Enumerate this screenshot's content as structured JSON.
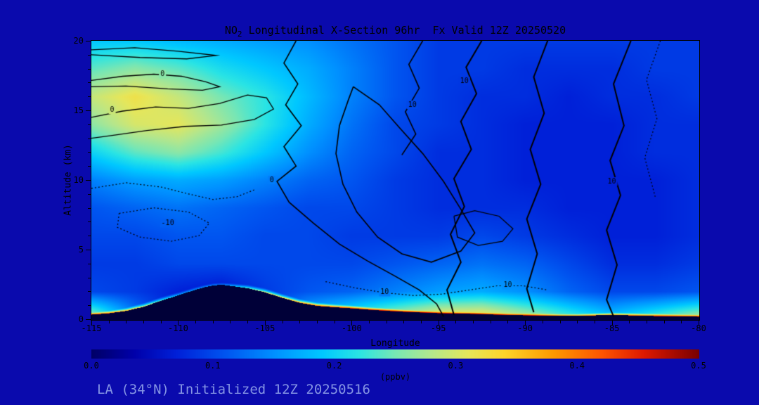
{
  "title": {
    "prefix": "NO",
    "sub": "2",
    "rest": " Longitudinal X-Section 96hr  Fx Valid 12Z 20250520"
  },
  "footer": "LA (34°N) Initialized 12Z 20250516",
  "axes": {
    "y_label": "Altitude (km)",
    "x_label": "Longitude",
    "y_ticks": [
      0,
      5,
      10,
      15,
      20
    ],
    "x_ticks": [
      -115,
      -110,
      -105,
      -100,
      -95,
      -90,
      -85,
      -80
    ]
  },
  "colorbar": {
    "ticks": [
      "0.0",
      "0.1",
      "0.2",
      "0.3",
      "0.4",
      "0.5"
    ],
    "label": "(ppbv)",
    "min": 0.0,
    "max": 0.5
  },
  "chart_data": {
    "type": "heatmap",
    "title": "NO2 Longitudinal X-Section 96hr Fx Valid 12Z 20250520",
    "xlabel": "Longitude",
    "ylabel": "Altitude (km)",
    "units": "ppbv",
    "xlim": [
      -115,
      -80
    ],
    "ylim": [
      0,
      20
    ],
    "value_range": [
      0,
      0.5
    ],
    "lon": [
      -115,
      -112.5,
      -110,
      -107.5,
      -105,
      -102.5,
      -100,
      -97.5,
      -95,
      -92.5,
      -90,
      -87.5,
      -85,
      -82.5,
      -80
    ],
    "alt": [
      0,
      2,
      4,
      6,
      8,
      10,
      12,
      14,
      16,
      18,
      20
    ],
    "values": [
      [
        0.3,
        0.15,
        0.05,
        0.04,
        0.1,
        0.2,
        0.25,
        0.3,
        0.35,
        0.35,
        0.3,
        0.25,
        0.2,
        0.25,
        0.3
      ],
      [
        0.1,
        0.09,
        0.07,
        0.06,
        0.09,
        0.11,
        0.12,
        0.14,
        0.16,
        0.17,
        0.15,
        0.12,
        0.1,
        0.1,
        0.11
      ],
      [
        0.09,
        0.09,
        0.1,
        0.1,
        0.1,
        0.1,
        0.1,
        0.11,
        0.12,
        0.13,
        0.12,
        0.1,
        0.08,
        0.08,
        0.09
      ],
      [
        0.1,
        0.1,
        0.11,
        0.11,
        0.1,
        0.1,
        0.09,
        0.09,
        0.09,
        0.1,
        0.09,
        0.08,
        0.07,
        0.07,
        0.08
      ],
      [
        0.11,
        0.12,
        0.13,
        0.12,
        0.11,
        0.1,
        0.1,
        0.09,
        0.08,
        0.08,
        0.08,
        0.07,
        0.07,
        0.07,
        0.08
      ],
      [
        0.14,
        0.16,
        0.17,
        0.16,
        0.14,
        0.12,
        0.11,
        0.09,
        0.08,
        0.08,
        0.07,
        0.07,
        0.07,
        0.07,
        0.08
      ],
      [
        0.2,
        0.24,
        0.26,
        0.23,
        0.19,
        0.15,
        0.12,
        0.1,
        0.08,
        0.08,
        0.07,
        0.07,
        0.07,
        0.08,
        0.08
      ],
      [
        0.26,
        0.3,
        0.31,
        0.27,
        0.22,
        0.17,
        0.13,
        0.1,
        0.09,
        0.08,
        0.07,
        0.07,
        0.07,
        0.08,
        0.08
      ],
      [
        0.29,
        0.32,
        0.29,
        0.25,
        0.22,
        0.18,
        0.14,
        0.11,
        0.09,
        0.08,
        0.08,
        0.07,
        0.08,
        0.08,
        0.09
      ],
      [
        0.24,
        0.26,
        0.24,
        0.21,
        0.19,
        0.17,
        0.14,
        0.11,
        0.09,
        0.09,
        0.08,
        0.08,
        0.08,
        0.09,
        0.09
      ],
      [
        0.19,
        0.19,
        0.18,
        0.17,
        0.16,
        0.15,
        0.13,
        0.11,
        0.09,
        0.09,
        0.09,
        0.09,
        0.09,
        0.09,
        0.09
      ]
    ],
    "surface_values": [
      0.46,
      0.36,
      0.18,
      0.14,
      0.32,
      0.42,
      0.46,
      0.5,
      0.5,
      0.5,
      0.48,
      0.42,
      0.38,
      0.46,
      0.5
    ],
    "terrain": {
      "lon": [
        -115,
        -114,
        -113,
        -112,
        -111,
        -110,
        -109,
        -108.5,
        -108,
        -107.5,
        -107,
        -106,
        -105,
        -104,
        -103,
        -102,
        -101,
        -100,
        -99,
        -98,
        -97,
        -96,
        -95,
        -94,
        -93,
        -92,
        -91,
        -90,
        -89,
        -88,
        -87,
        -86,
        -85,
        -84,
        -83,
        -82,
        -81,
        -80
      ],
      "height_km": [
        0.35,
        0.45,
        0.62,
        0.92,
        1.35,
        1.75,
        2.15,
        2.32,
        2.45,
        2.5,
        2.42,
        2.25,
        1.95,
        1.55,
        1.2,
        0.98,
        0.88,
        0.8,
        0.7,
        0.62,
        0.55,
        0.5,
        0.45,
        0.42,
        0.4,
        0.36,
        0.32,
        0.3,
        0.28,
        0.26,
        0.26,
        0.3,
        0.34,
        0.3,
        0.26,
        0.24,
        0.22,
        0.2
      ]
    },
    "colormap": [
      [
        0.0,
        "#000066"
      ],
      [
        0.07,
        "#0000aa"
      ],
      [
        0.14,
        "#0020d8"
      ],
      [
        0.22,
        "#0055f0"
      ],
      [
        0.3,
        "#0090ff"
      ],
      [
        0.38,
        "#00c8ff"
      ],
      [
        0.44,
        "#2ae4e4"
      ],
      [
        0.5,
        "#78e6b4"
      ],
      [
        0.56,
        "#b4e68c"
      ],
      [
        0.62,
        "#e6e65a"
      ],
      [
        0.68,
        "#ffd52a"
      ],
      [
        0.76,
        "#ff9900"
      ],
      [
        0.84,
        "#ff5500"
      ],
      [
        0.91,
        "#dd1900"
      ],
      [
        1.0,
        "#7a0000"
      ]
    ],
    "terrain_color": "#000038",
    "overlay_contours": [
      {
        "style": "solid",
        "width": 1.3,
        "points": [
          [
            -115,
            17.15
          ],
          [
            -113.2,
            17.45
          ],
          [
            -111.4,
            17.6
          ],
          [
            -109.8,
            17.45
          ],
          [
            -108.4,
            17.05
          ],
          [
            -107.6,
            16.7
          ],
          [
            -108.6,
            16.45
          ],
          [
            -110.6,
            16.55
          ],
          [
            -113,
            16.75
          ],
          [
            -115,
            16.7
          ]
        ],
        "labels": [
          {
            "text": "0",
            "pos": [
              -110.9,
              17.6
            ]
          }
        ]
      },
      {
        "style": "solid",
        "width": 1.3,
        "points": [
          [
            -115,
            19.35
          ],
          [
            -112.5,
            19.5
          ],
          [
            -110,
            19.25
          ],
          [
            -107.8,
            18.95
          ],
          [
            -109.5,
            18.7
          ],
          [
            -112.2,
            18.8
          ],
          [
            -115,
            19.0
          ]
        ],
        "labels": []
      },
      {
        "style": "solid",
        "width": 1.3,
        "points": [
          [
            -115,
            14.5
          ],
          [
            -113.2,
            14.95
          ],
          [
            -111.3,
            15.25
          ],
          [
            -109.4,
            15.15
          ],
          [
            -107.6,
            15.5
          ],
          [
            -106,
            16.1
          ],
          [
            -104.9,
            15.9
          ],
          [
            -104.5,
            15.1
          ],
          [
            -105.6,
            14.35
          ],
          [
            -107.5,
            13.95
          ],
          [
            -109.6,
            13.85
          ],
          [
            -111.8,
            13.55
          ],
          [
            -113.8,
            13.2
          ],
          [
            -115,
            13.0
          ]
        ],
        "labels": [
          {
            "text": "0",
            "pos": [
              -113.8,
              15.05
            ]
          }
        ]
      },
      {
        "style": "solid",
        "width": 1.6,
        "points": [
          [
            -103.2,
            20
          ],
          [
            -103.9,
            18.4
          ],
          [
            -103.1,
            16.9
          ],
          [
            -103.8,
            15.4
          ],
          [
            -102.9,
            13.9
          ],
          [
            -103.9,
            12.4
          ],
          [
            -103.2,
            11
          ],
          [
            -104.3,
            9.9
          ],
          [
            -103.6,
            8.4
          ],
          [
            -102.2,
            6.9
          ],
          [
            -100.7,
            5.4
          ],
          [
            -99.1,
            4.2
          ],
          [
            -97.5,
            3.1
          ],
          [
            -96.1,
            2.1
          ],
          [
            -95.1,
            1.1
          ],
          [
            -94.7,
            0.2
          ]
        ],
        "labels": [
          {
            "text": "0",
            "pos": [
              -104.6,
              10.0
            ]
          }
        ]
      },
      {
        "style": "solid",
        "width": 1.6,
        "points": [
          [
            -99.9,
            16.7
          ],
          [
            -98.4,
            15.4
          ],
          [
            -97.2,
            13.7
          ],
          [
            -95.9,
            11.9
          ],
          [
            -94.7,
            9.9
          ],
          [
            -93.7,
            7.9
          ],
          [
            -92.9,
            6.2
          ],
          [
            -93.7,
            4.9
          ],
          [
            -95.4,
            4.1
          ],
          [
            -97.1,
            4.7
          ],
          [
            -98.5,
            5.9
          ],
          [
            -99.7,
            7.7
          ],
          [
            -100.5,
            9.7
          ],
          [
            -100.9,
            11.9
          ],
          [
            -100.7,
            13.9
          ],
          [
            -100.2,
            15.7
          ],
          [
            -99.9,
            16.7
          ]
        ],
        "labels": []
      },
      {
        "style": "solid",
        "width": 1.6,
        "points": [
          [
            -95.9,
            20
          ],
          [
            -96.7,
            18.3
          ],
          [
            -96.1,
            16.6
          ],
          [
            -96.9,
            14.9
          ],
          [
            -96.3,
            13.3
          ],
          [
            -97.1,
            11.8
          ]
        ],
        "labels": [
          {
            "text": "10",
            "pos": [
              -96.5,
              15.4
            ]
          }
        ]
      },
      {
        "style": "solid",
        "width": 1.3,
        "points": [
          [
            -94.1,
            7.4
          ],
          [
            -92.9,
            7.8
          ],
          [
            -91.5,
            7.4
          ],
          [
            -90.7,
            6.5
          ],
          [
            -91.3,
            5.6
          ],
          [
            -92.7,
            5.3
          ],
          [
            -93.9,
            5.9
          ],
          [
            -94.1,
            7.4
          ]
        ],
        "labels": []
      },
      {
        "style": "solid",
        "width": 2,
        "points": [
          [
            -92.5,
            20
          ],
          [
            -93.4,
            18.1
          ],
          [
            -92.8,
            16.2
          ],
          [
            -93.7,
            14.2
          ],
          [
            -93.1,
            12.2
          ],
          [
            -94.1,
            10.1
          ],
          [
            -93.5,
            8.1
          ],
          [
            -94.3,
            6.1
          ],
          [
            -93.7,
            4.1
          ],
          [
            -94.5,
            2.1
          ],
          [
            -94.1,
            0.3
          ]
        ],
        "labels": [
          {
            "text": "10",
            "pos": [
              -93.5,
              17.1
            ]
          }
        ]
      },
      {
        "style": "solid",
        "width": 2,
        "points": [
          [
            -88.7,
            20
          ],
          [
            -89.5,
            17.4
          ],
          [
            -88.9,
            14.8
          ],
          [
            -89.7,
            12.2
          ],
          [
            -89.1,
            9.7
          ],
          [
            -89.9,
            7.2
          ],
          [
            -89.3,
            4.7
          ],
          [
            -89.9,
            2.2
          ],
          [
            -89.5,
            0.5
          ]
        ],
        "labels": []
      },
      {
        "style": "solid",
        "width": 2,
        "points": [
          [
            -83.9,
            20
          ],
          [
            -84.9,
            16.9
          ],
          [
            -84.3,
            13.9
          ],
          [
            -85.1,
            11.4
          ],
          [
            -84.5,
            8.9
          ],
          [
            -85.3,
            6.4
          ],
          [
            -84.7,
            3.9
          ],
          [
            -85.3,
            1.4
          ],
          [
            -84.9,
            0.2
          ]
        ],
        "labels": [
          {
            "text": "10",
            "pos": [
              -85.0,
              9.9
            ]
          }
        ]
      },
      {
        "style": "dotted",
        "width": 1.2,
        "points": [
          [
            -113.4,
            7.6
          ],
          [
            -111.4,
            8.0
          ],
          [
            -109.4,
            7.7
          ],
          [
            -108.2,
            6.9
          ],
          [
            -108.8,
            6.0
          ],
          [
            -110.4,
            5.6
          ],
          [
            -112.2,
            5.9
          ],
          [
            -113.5,
            6.6
          ],
          [
            -113.4,
            7.6
          ]
        ],
        "labels": [
          {
            "text": "-10",
            "pos": [
              -110.6,
              6.9
            ]
          }
        ]
      },
      {
        "style": "dotted",
        "width": 1.2,
        "points": [
          [
            -115,
            9.4
          ],
          [
            -113,
            9.8
          ],
          [
            -111,
            9.5
          ],
          [
            -109.4,
            9.0
          ],
          [
            -108,
            8.6
          ],
          [
            -106.6,
            8.8
          ],
          [
            -105.6,
            9.3
          ]
        ],
        "labels": []
      },
      {
        "style": "dotted",
        "width": 1.2,
        "points": [
          [
            -101.5,
            2.7
          ],
          [
            -99.8,
            2.25
          ],
          [
            -98.1,
            1.9
          ],
          [
            -96.4,
            1.7
          ],
          [
            -94.8,
            1.8
          ],
          [
            -93.2,
            2.1
          ],
          [
            -91.6,
            2.4
          ],
          [
            -90.1,
            2.4
          ],
          [
            -88.7,
            2.1
          ]
        ],
        "labels": [
          {
            "text": "10",
            "pos": [
              -98.1,
              1.95
            ]
          },
          {
            "text": "10",
            "pos": [
              -91.0,
              2.45
            ]
          }
        ]
      },
      {
        "style": "dotted",
        "width": 1.2,
        "points": [
          [
            -82.2,
            20
          ],
          [
            -83,
            17.2
          ],
          [
            -82.4,
            14.4
          ],
          [
            -83.1,
            11.6
          ],
          [
            -82.5,
            8.8
          ]
        ],
        "labels": []
      }
    ]
  }
}
